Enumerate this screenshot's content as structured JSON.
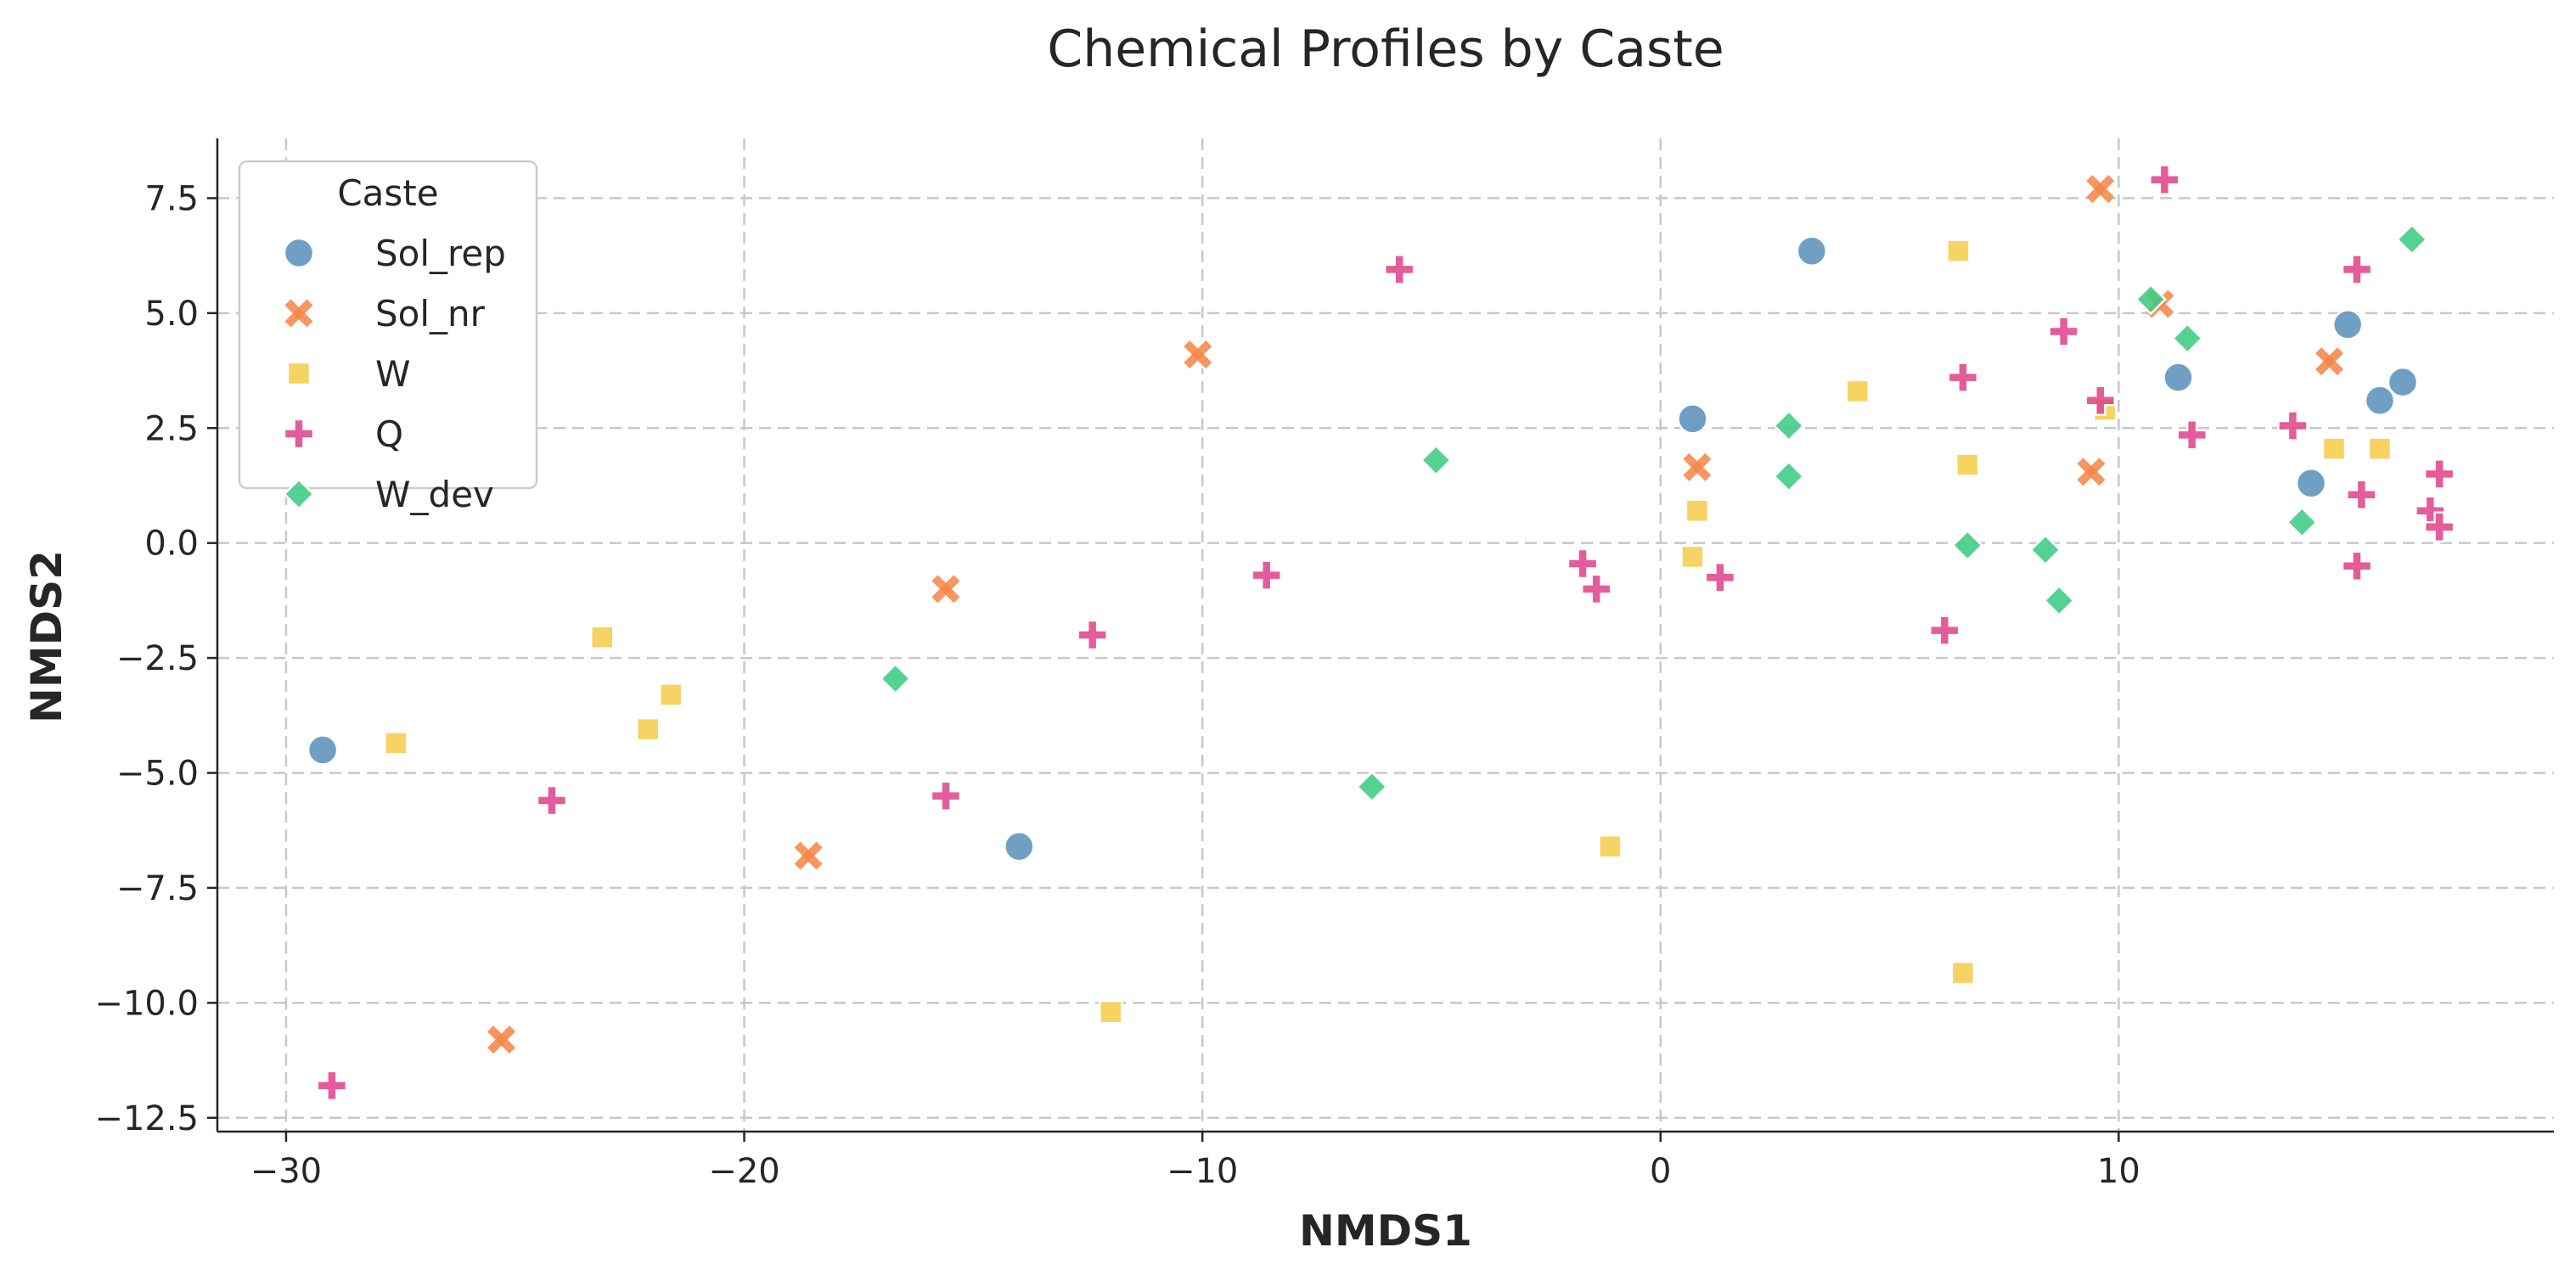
{
  "chart_data": {
    "type": "scatter",
    "title": "Chemical Profiles by Caste",
    "xlabel": "NMDS1",
    "ylabel": "NMDS2",
    "xlim": [
      -31.5,
      19.5
    ],
    "ylim": [
      -12.8,
      8.8
    ],
    "xticks": [
      -30,
      -20,
      -10,
      0,
      10
    ],
    "xtick_labels": [
      "−30",
      "−20",
      "−10",
      "0",
      "10"
    ],
    "yticks": [
      7.5,
      5.0,
      2.5,
      0.0,
      -2.5,
      -5.0,
      -7.5,
      -10.0,
      -12.5
    ],
    "ytick_labels": [
      "7.5",
      "5.0",
      "2.5",
      "0.0",
      "−2.5",
      "−5.0",
      "−7.5",
      "−10.0",
      "−12.5"
    ],
    "grid": true,
    "legend": {
      "title": "Caste",
      "position": "top-left"
    },
    "series": [
      {
        "name": "Sol_rep",
        "marker": "circle",
        "color": "#5b93bb",
        "points": [
          [
            -29.2,
            -4.5
          ],
          [
            -14.0,
            -6.6
          ],
          [
            0.7,
            2.7
          ],
          [
            3.3,
            6.35
          ],
          [
            11.3,
            3.6
          ],
          [
            14.2,
            1.3
          ],
          [
            15.0,
            4.75
          ],
          [
            15.7,
            3.1
          ],
          [
            16.2,
            3.5
          ]
        ]
      },
      {
        "name": "Sol_nr",
        "marker": "x",
        "color": "#f5874a",
        "points": [
          [
            -25.3,
            -10.8
          ],
          [
            -18.6,
            -6.8
          ],
          [
            -15.6,
            -1.0
          ],
          [
            -10.1,
            4.1
          ],
          [
            0.8,
            1.65
          ],
          [
            9.4,
            1.55
          ],
          [
            9.6,
            7.7
          ],
          [
            10.9,
            5.2
          ],
          [
            14.6,
            3.95
          ]
        ]
      },
      {
        "name": "W",
        "marker": "square",
        "color": "#f5cd4d",
        "points": [
          [
            -27.6,
            -4.35
          ],
          [
            -23.1,
            -2.05
          ],
          [
            -22.1,
            -4.05
          ],
          [
            -21.6,
            -3.3
          ],
          [
            -12.0,
            -10.2
          ],
          [
            -1.1,
            -6.6
          ],
          [
            0.7,
            -0.3
          ],
          [
            0.8,
            0.7
          ],
          [
            4.3,
            3.3
          ],
          [
            6.5,
            6.35
          ],
          [
            6.6,
            -9.35
          ],
          [
            6.7,
            1.7
          ],
          [
            9.7,
            2.9
          ],
          [
            14.7,
            2.05
          ],
          [
            15.7,
            2.05
          ]
        ]
      },
      {
        "name": "Q",
        "marker": "plus",
        "color": "#e0468c",
        "points": [
          [
            -29.0,
            -11.8
          ],
          [
            -24.2,
            -5.6
          ],
          [
            -15.6,
            -5.5
          ],
          [
            -12.4,
            -2.0
          ],
          [
            -8.6,
            -0.7
          ],
          [
            -5.7,
            5.95
          ],
          [
            -1.7,
            -0.45
          ],
          [
            -1.4,
            -1.0
          ],
          [
            1.3,
            -0.75
          ],
          [
            6.2,
            -1.9
          ],
          [
            6.6,
            3.6
          ],
          [
            8.8,
            4.6
          ],
          [
            9.6,
            3.1
          ],
          [
            11.0,
            7.9
          ],
          [
            11.6,
            2.35
          ],
          [
            13.8,
            2.55
          ],
          [
            15.2,
            5.95
          ],
          [
            15.2,
            -0.5
          ],
          [
            15.3,
            1.05
          ],
          [
            16.8,
            0.7
          ],
          [
            17.0,
            1.5
          ],
          [
            17.0,
            0.35
          ]
        ]
      },
      {
        "name": "W_dev",
        "marker": "diamond",
        "color": "#3dcc82",
        "points": [
          [
            -16.7,
            -2.95
          ],
          [
            -6.3,
            -5.3
          ],
          [
            -4.9,
            1.8
          ],
          [
            2.8,
            1.45
          ],
          [
            2.8,
            2.55
          ],
          [
            6.7,
            -0.05
          ],
          [
            8.4,
            -0.15
          ],
          [
            8.7,
            -1.25
          ],
          [
            10.7,
            5.3
          ],
          [
            11.5,
            4.45
          ],
          [
            14.0,
            0.45
          ],
          [
            16.4,
            6.6
          ]
        ]
      }
    ]
  }
}
